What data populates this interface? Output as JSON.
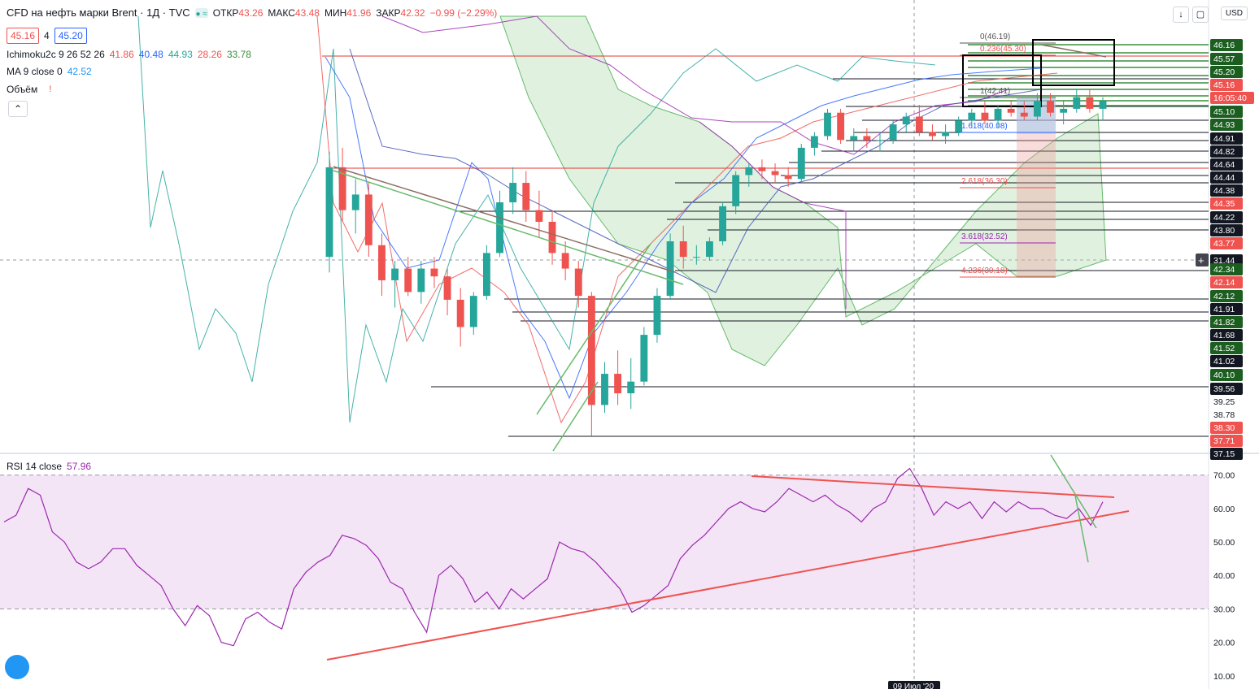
{
  "header": {
    "symbol": "CFD на нефть марки Brent · 1Д · TVC",
    "ohlc": [
      {
        "label": "ОТКР",
        "value": "43.26"
      },
      {
        "label": "МАКС",
        "value": "43.48"
      },
      {
        "label": "МИН",
        "value": "41.96"
      },
      {
        "label": "ЗАКР",
        "value": "42.32"
      }
    ],
    "change": "−0.99 (−2.29%)",
    "bid": "45.16",
    "spread": "4",
    "ask": "45.20"
  },
  "indicators": {
    "ichimoku": {
      "label": "Ichimoku2c 9 26 52 26",
      "values": [
        "41.86",
        "40.48",
        "44.93",
        "28.26",
        "33.78"
      ]
    },
    "ma": {
      "label": "MA 9 close 0",
      "value": "42.52"
    },
    "volume": {
      "label": "Объём"
    },
    "rsi": {
      "label": "RSI 14 close",
      "value": "57.96"
    }
  },
  "currency": "USD",
  "countdown": "16:05:40",
  "axis_badges": [
    {
      "v": "46.16",
      "c": "#1b5e20"
    },
    {
      "v": "45.57",
      "c": "#1b5e20"
    },
    {
      "v": "45.20",
      "c": "#1b5e20"
    },
    {
      "v": "45.16",
      "c": "#ef5350"
    },
    {
      "v": "45.10",
      "c": "#1b5e20"
    },
    {
      "v": "44.93",
      "c": "#1b5e20"
    },
    {
      "v": "44.91",
      "c": "#131722"
    },
    {
      "v": "44.82",
      "c": "#131722"
    },
    {
      "v": "44.64",
      "c": "#131722"
    },
    {
      "v": "44.44",
      "c": "#131722"
    },
    {
      "v": "44.38",
      "c": "#131722"
    },
    {
      "v": "44.35",
      "c": "#ef5350"
    },
    {
      "v": "44.22",
      "c": "#131722"
    },
    {
      "v": "43.80",
      "c": "#131722"
    },
    {
      "v": "43.77",
      "c": "#ef5350"
    },
    {
      "v": "31.44",
      "c": "#131722"
    },
    {
      "v": "42.34",
      "c": "#1b5e20"
    },
    {
      "v": "42.14",
      "c": "#ef5350"
    },
    {
      "v": "42.12",
      "c": "#1b5e20"
    },
    {
      "v": "41.91",
      "c": "#131722"
    },
    {
      "v": "41.82",
      "c": "#1b5e20"
    },
    {
      "v": "41.68",
      "c": "#131722"
    },
    {
      "v": "41.52",
      "c": "#1b5e20"
    },
    {
      "v": "41.02",
      "c": "#131722"
    },
    {
      "v": "40.10",
      "c": "#1b5e20"
    },
    {
      "v": "39.56",
      "c": "#131722"
    },
    {
      "v": "39.25",
      "c": "#ffffff"
    },
    {
      "v": "38.78",
      "c": "#ffffff"
    },
    {
      "v": "38.30",
      "c": "#ef5350"
    },
    {
      "v": "37.71",
      "c": "#ef5350"
    },
    {
      "v": "37.15",
      "c": "#131722"
    }
  ],
  "rsi_ticks": [
    "70.00",
    "60.00",
    "50.00",
    "40.00",
    "30.00",
    "20.00",
    "10.00"
  ],
  "date_label": "09 Июл '20",
  "fib_labels": [
    {
      "t": "0(46.19)",
      "c": "#555555"
    },
    {
      "t": "0.236(45.30)",
      "c": "#ef5350"
    },
    {
      "t": "1(42.41)",
      "c": "#555555"
    },
    {
      "t": "1.618(40.08)",
      "c": "#2962ff"
    },
    {
      "t": "2.618(36.30)",
      "c": "#ef5350"
    },
    {
      "t": "3.618(32.52)",
      "c": "#9c27b0"
    },
    {
      "t": "4.236(30.18)",
      "c": "#ef5350"
    }
  ],
  "chart_data": {
    "type": "candlestick",
    "price_range": [
      36.9,
      48.2
    ],
    "rsi_range": [
      8,
      76
    ],
    "candles": [
      [
        41.9,
        44.6,
        41.5,
        44.2
      ],
      [
        44.2,
        44.7,
        42.8,
        43.1
      ],
      [
        43.1,
        43.9,
        42.5,
        43.5
      ],
      [
        43.5,
        43.8,
        41.9,
        42.2
      ],
      [
        42.2,
        42.5,
        40.9,
        41.3
      ],
      [
        41.3,
        41.8,
        40.6,
        41.6
      ],
      [
        41.6,
        41.9,
        40.9,
        41.0
      ],
      [
        41.0,
        41.8,
        40.7,
        41.6
      ],
      [
        41.6,
        41.9,
        41.1,
        41.4
      ],
      [
        41.4,
        41.6,
        40.4,
        40.8
      ],
      [
        40.8,
        41.1,
        39.6,
        40.1
      ],
      [
        40.1,
        41.0,
        39.9,
        40.9
      ],
      [
        40.9,
        42.2,
        40.8,
        42.0
      ],
      [
        42.0,
        43.6,
        41.9,
        43.3
      ],
      [
        43.3,
        44.2,
        43.0,
        43.8
      ],
      [
        43.8,
        44.1,
        42.8,
        43.1
      ],
      [
        43.1,
        43.6,
        42.4,
        42.8
      ],
      [
        42.8,
        43.1,
        41.7,
        42.0
      ],
      [
        42.0,
        42.3,
        41.3,
        41.6
      ],
      [
        41.6,
        41.8,
        40.6,
        40.9
      ],
      [
        40.9,
        41.0,
        37.3,
        38.1
      ],
      [
        38.1,
        39.2,
        37.9,
        38.9
      ],
      [
        38.9,
        39.5,
        38.1,
        38.4
      ],
      [
        38.4,
        39.3,
        38.0,
        38.7
      ],
      [
        38.7,
        40.1,
        38.6,
        39.9
      ],
      [
        39.9,
        41.1,
        39.7,
        40.9
      ],
      [
        40.9,
        42.5,
        40.8,
        42.3
      ],
      [
        42.3,
        42.7,
        41.6,
        41.9
      ],
      [
        41.9,
        42.2,
        41.7,
        41.9
      ],
      [
        41.9,
        42.4,
        41.8,
        42.3
      ],
      [
        42.3,
        43.3,
        42.2,
        43.2
      ],
      [
        43.2,
        44.1,
        43.0,
        44.0
      ],
      [
        44.0,
        44.3,
        43.7,
        44.2
      ],
      [
        44.2,
        44.4,
        43.9,
        44.1
      ],
      [
        44.1,
        44.3,
        43.8,
        44.0
      ],
      [
        44.0,
        44.2,
        43.7,
        43.9
      ],
      [
        43.9,
        44.8,
        43.8,
        44.7
      ],
      [
        44.7,
        45.1,
        44.5,
        45.0
      ],
      [
        45.0,
        45.7,
        44.9,
        45.6
      ],
      [
        45.6,
        45.7,
        44.8,
        44.9
      ],
      [
        44.9,
        45.2,
        44.6,
        45.0
      ],
      [
        45.0,
        45.2,
        44.7,
        44.9
      ],
      [
        44.9,
        45.1,
        44.6,
        44.9
      ],
      [
        44.9,
        45.4,
        44.8,
        45.3
      ],
      [
        45.3,
        45.6,
        45.1,
        45.5
      ],
      [
        45.5,
        45.8,
        45.0,
        45.1
      ],
      [
        45.1,
        45.3,
        44.9,
        45.0
      ],
      [
        45.0,
        45.3,
        44.8,
        45.1
      ],
      [
        45.1,
        45.5,
        45.0,
        45.4
      ],
      [
        45.4,
        45.7,
        45.2,
        45.6
      ],
      [
        45.6,
        45.9,
        45.3,
        45.4
      ],
      [
        45.4,
        45.8,
        45.2,
        45.7
      ],
      [
        45.7,
        45.9,
        45.5,
        45.6
      ],
      [
        45.6,
        45.9,
        45.4,
        45.5
      ],
      [
        45.5,
        46.1,
        45.4,
        45.9
      ],
      [
        45.9,
        46.1,
        45.5,
        45.6
      ],
      [
        45.6,
        45.9,
        45.3,
        45.7
      ],
      [
        45.7,
        46.2,
        45.6,
        46.0
      ],
      [
        46.0,
        46.2,
        45.6,
        45.7
      ],
      [
        45.7,
        46.0,
        45.4,
        45.9
      ]
    ],
    "rsi": [
      56,
      58,
      66,
      64,
      53,
      50,
      44,
      42,
      44,
      48,
      48,
      43,
      40,
      37,
      30,
      25,
      31,
      28,
      20,
      19,
      27,
      29,
      26,
      24,
      36,
      41,
      44,
      46,
      52,
      51,
      49,
      45,
      38,
      36,
      29,
      23,
      40,
      43,
      39,
      32,
      35,
      30,
      36,
      33,
      36,
      39,
      50,
      48,
      47,
      44,
      40,
      36,
      29,
      31,
      34,
      37,
      45,
      49,
      52,
      56,
      60,
      62,
      60,
      59,
      62,
      66,
      64,
      62,
      64,
      61,
      59,
      56,
      60,
      62,
      69,
      72,
      66,
      58,
      62,
      60,
      62,
      57,
      62,
      59,
      62,
      60,
      60,
      58,
      57,
      60,
      55,
      62
    ]
  }
}
